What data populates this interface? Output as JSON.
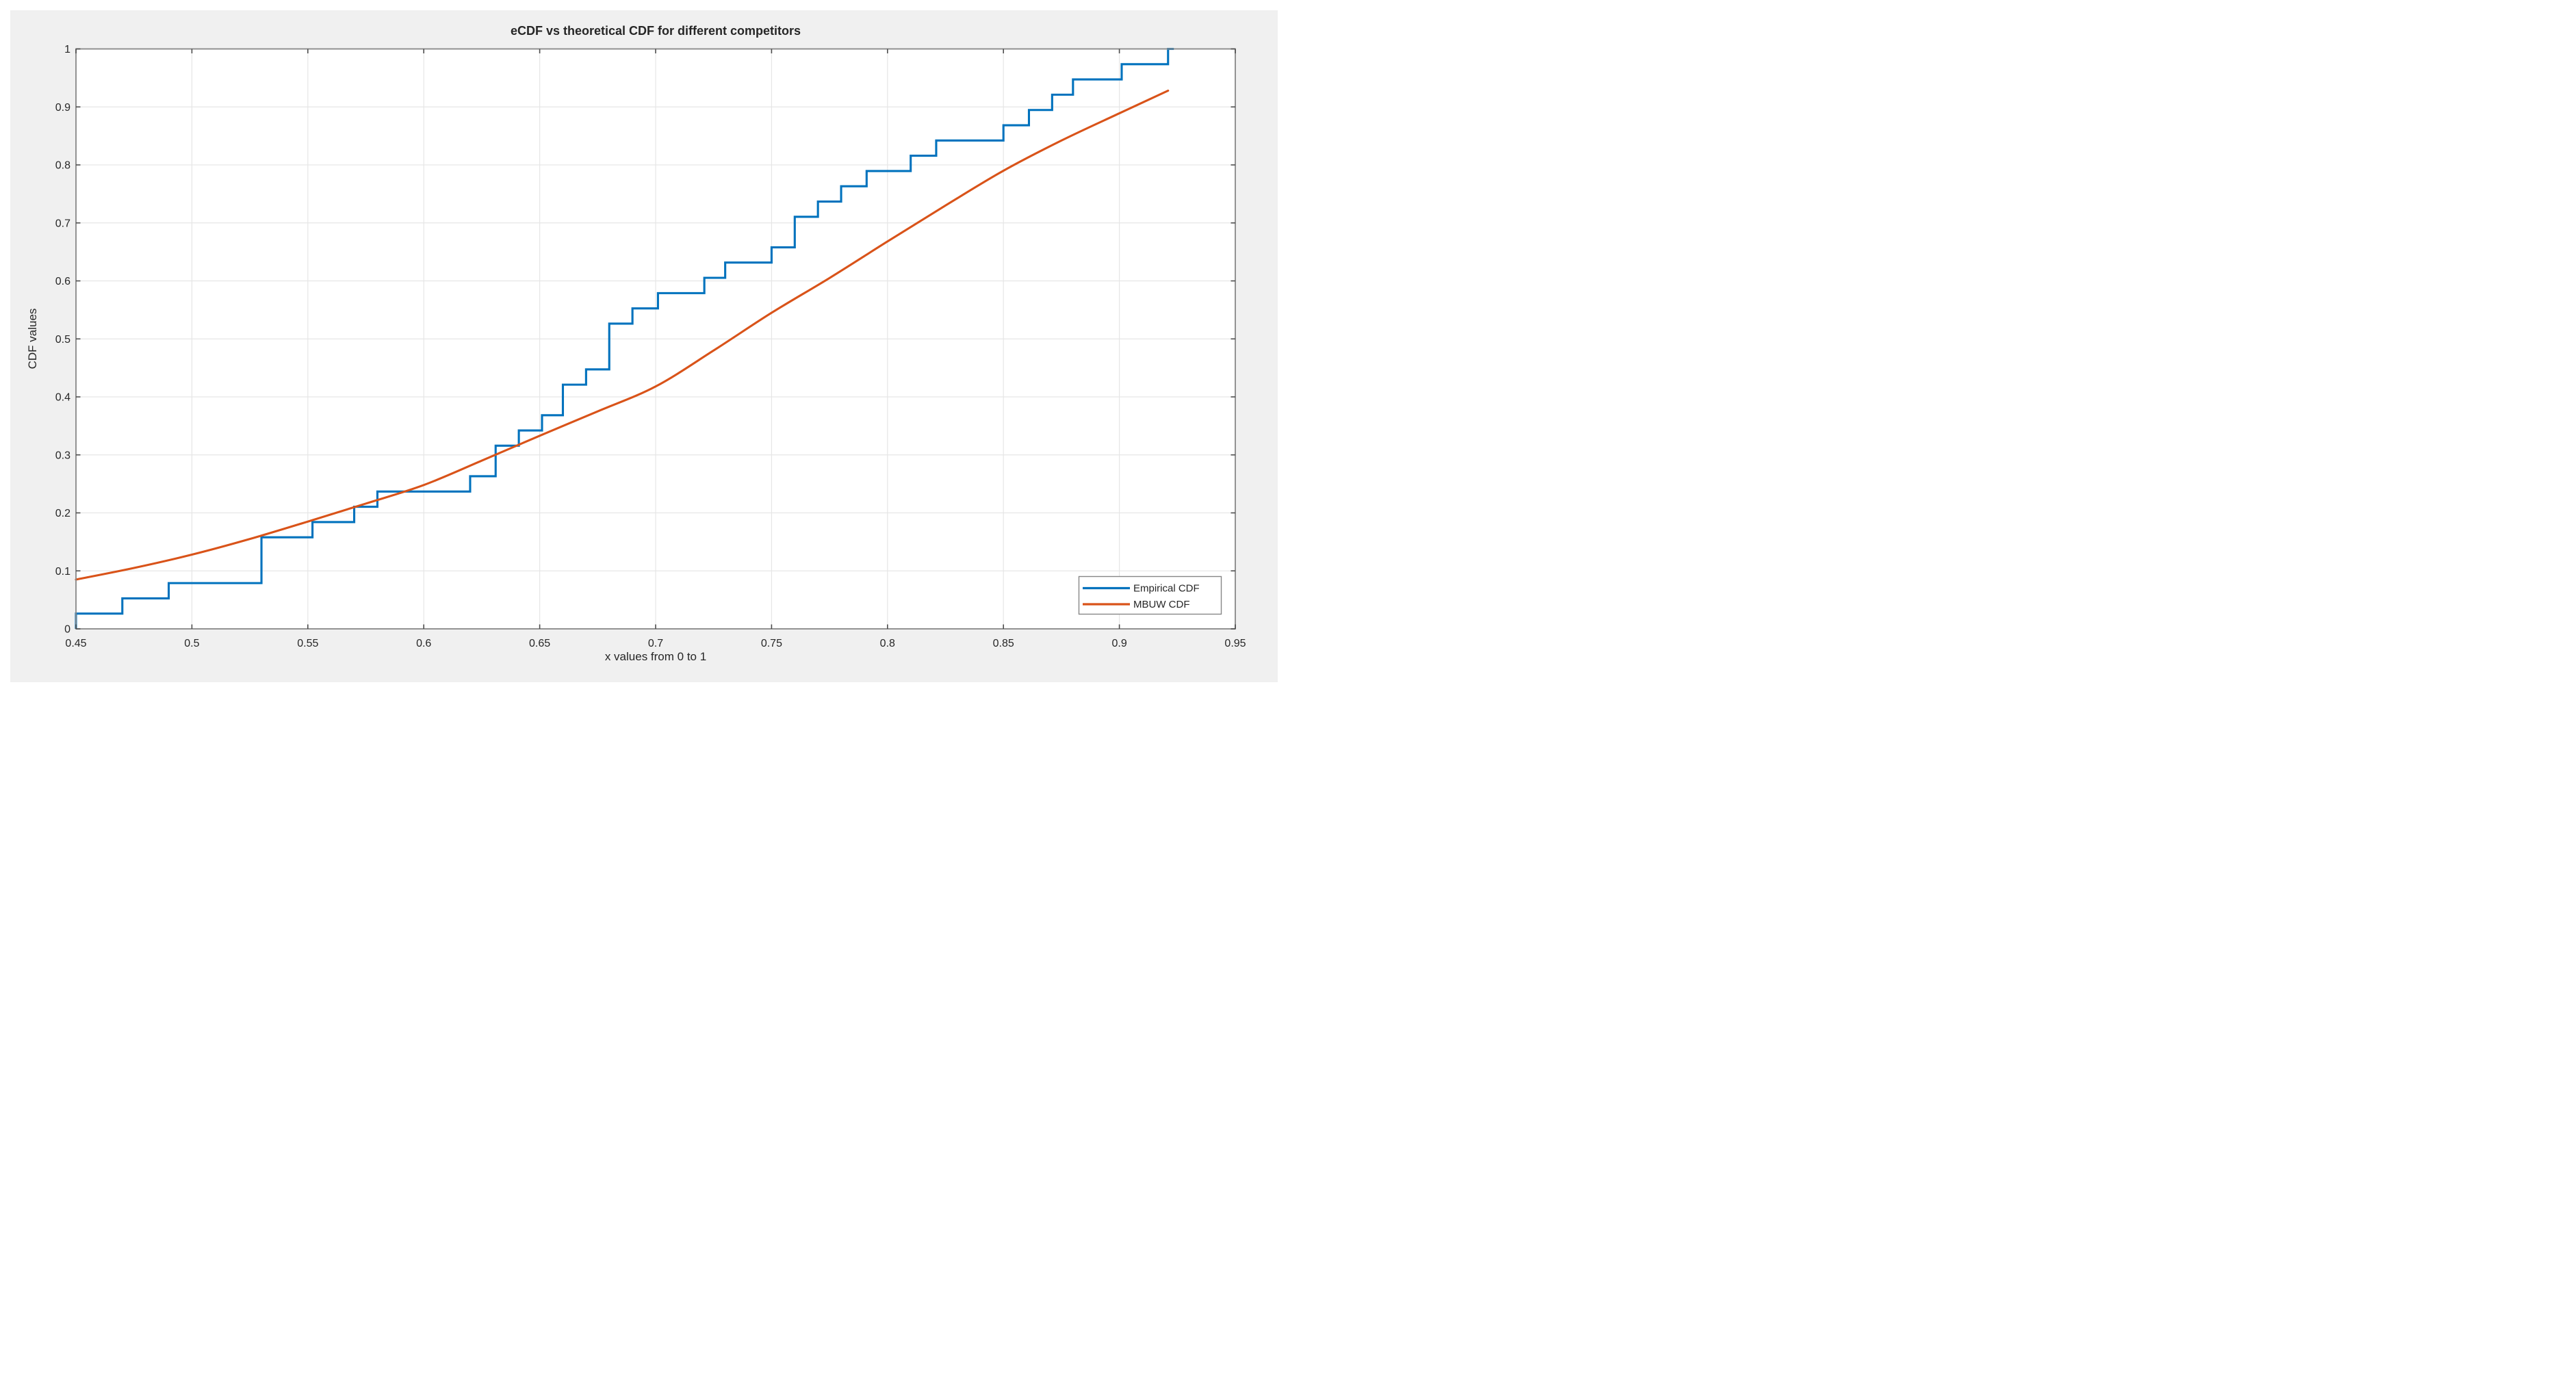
{
  "title": "eCDF vs theoretical CDF for different competitors",
  "axes": {
    "xlabel": "x values from 0 to 1",
    "ylabel": "CDF values",
    "xlim": [
      0.45,
      0.95
    ],
    "ylim": [
      0,
      1
    ],
    "xticks": [
      0.45,
      0.5,
      0.55,
      0.6,
      0.65,
      0.7,
      0.75,
      0.8,
      0.85,
      0.9,
      0.95
    ],
    "xtick_labels": [
      "0.45",
      "0.5",
      "0.55",
      "0.6",
      "0.65",
      "0.7",
      "0.75",
      "0.8",
      "0.85",
      "0.9",
      "0.95"
    ],
    "yticks": [
      0,
      0.1,
      0.2,
      0.3,
      0.4,
      0.5,
      0.6,
      0.7,
      0.8,
      0.9,
      1
    ],
    "ytick_labels": [
      "0",
      "0.1",
      "0.2",
      "0.3",
      "0.4",
      "0.5",
      "0.6",
      "0.7",
      "0.8",
      "0.9",
      "1"
    ],
    "grid": true
  },
  "legend": {
    "position": "bottom-right",
    "entries": [
      {
        "label": "Empirical CDF",
        "color": "#0072BD"
      },
      {
        "label": "MBUW CDF",
        "color": "#D95319"
      }
    ]
  },
  "colors": {
    "figure_bg": "#F0F0F0",
    "plot_bg": "#FFFFFF",
    "grid": "#E6E6E6",
    "axis_box": "#878787",
    "tick": "#4D4D4D",
    "text": "#262626",
    "empirical": "#0072BD",
    "mbuw": "#D95319"
  },
  "chart_data": {
    "type": "line",
    "title": "eCDF vs theoretical CDF for different competitors",
    "xlabel": "x values from 0 to 1",
    "ylabel": "CDF values",
    "xlim": [
      0.45,
      0.95
    ],
    "ylim": [
      0,
      1
    ],
    "grid": true,
    "legend_position": "bottom-right",
    "series": [
      {
        "name": "Empirical CDF",
        "type": "step",
        "color": "#0072BD",
        "n_samples": 38,
        "start": [
          0.45,
          0
        ],
        "tail_x": 0.9235,
        "jumps": [
          [
            0.45,
            0.0263
          ],
          [
            0.47,
            0.0526
          ],
          [
            0.49,
            0.0789
          ],
          [
            0.53,
            0.1579
          ],
          [
            0.552,
            0.1842
          ],
          [
            0.57,
            0.2105
          ],
          [
            0.58,
            0.2368
          ],
          [
            0.62,
            0.2632
          ],
          [
            0.631,
            0.3158
          ],
          [
            0.641,
            0.3421
          ],
          [
            0.651,
            0.3684
          ],
          [
            0.66,
            0.4211
          ],
          [
            0.67,
            0.4474
          ],
          [
            0.68,
            0.5263
          ],
          [
            0.69,
            0.5526
          ],
          [
            0.701,
            0.5789
          ],
          [
            0.721,
            0.6053
          ],
          [
            0.73,
            0.6316
          ],
          [
            0.75,
            0.6579
          ],
          [
            0.76,
            0.7105
          ],
          [
            0.77,
            0.7368
          ],
          [
            0.78,
            0.7632
          ],
          [
            0.791,
            0.7895
          ],
          [
            0.81,
            0.8158
          ],
          [
            0.821,
            0.8421
          ],
          [
            0.85,
            0.8684
          ],
          [
            0.861,
            0.8947
          ],
          [
            0.871,
            0.9211
          ],
          [
            0.88,
            0.9474
          ],
          [
            0.901,
            0.9737
          ],
          [
            0.921,
            1.0
          ]
        ]
      },
      {
        "name": "MBUW CDF",
        "type": "smooth",
        "color": "#D95319",
        "points": [
          [
            0.45,
            0.085
          ],
          [
            0.475,
            0.105
          ],
          [
            0.5,
            0.128
          ],
          [
            0.525,
            0.155
          ],
          [
            0.55,
            0.185
          ],
          [
            0.575,
            0.216
          ],
          [
            0.6,
            0.248
          ],
          [
            0.625,
            0.29
          ],
          [
            0.65,
            0.333
          ],
          [
            0.675,
            0.375
          ],
          [
            0.7,
            0.418
          ],
          [
            0.725,
            0.48
          ],
          [
            0.75,
            0.545
          ],
          [
            0.775,
            0.605
          ],
          [
            0.8,
            0.668
          ],
          [
            0.825,
            0.73
          ],
          [
            0.85,
            0.79
          ],
          [
            0.875,
            0.842
          ],
          [
            0.9,
            0.889
          ],
          [
            0.921,
            0.928
          ]
        ]
      }
    ]
  }
}
